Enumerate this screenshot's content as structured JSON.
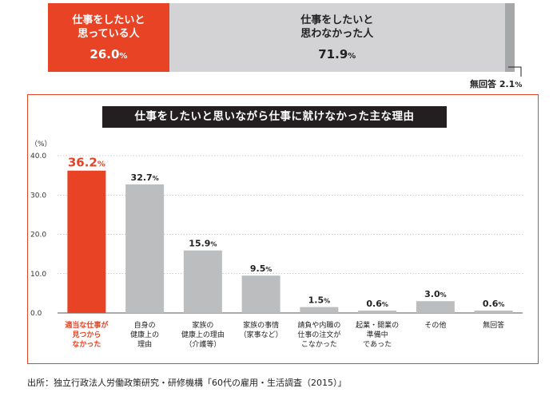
{
  "summary": {
    "segments": [
      {
        "label": "仕事をしたいと\n思っている人",
        "value": 26.0,
        "value_text": "26.0",
        "unit": "%",
        "color": "#e84324"
      },
      {
        "label": "仕事をしたいと\n思わなかった人",
        "value": 71.9,
        "value_text": "71.9",
        "unit": "%",
        "color": "#d3d3d5"
      },
      {
        "label": "無回答",
        "value": 2.1,
        "value_text": "2.1",
        "unit": "%",
        "color": "#a6a7a9"
      }
    ]
  },
  "chart_data": {
    "type": "bar",
    "title": "仕事をしたいと思いながら仕事に就けなかった主な理由",
    "ylabel": "（%）",
    "ylim": [
      0,
      40
    ],
    "yticks": [
      "0.0",
      "10.0",
      "20.0",
      "30.0",
      "40.0"
    ],
    "grid": true,
    "categories": [
      "適当な仕事が\n見つから\nなかった",
      "自身の\n健康上の\n理由",
      "家族の\n健康上の理由\n（介護等）",
      "家族の事情\n（家事など）",
      "請負や内職の\n仕事の注文が\nこなかった",
      "起業・開業の\n準備中\nであった",
      "その他",
      "無回答"
    ],
    "values": [
      36.2,
      32.7,
      15.9,
      9.5,
      1.5,
      0.6,
      3.0,
      0.6
    ],
    "value_labels": [
      "36.2",
      "32.7",
      "15.9",
      "9.5",
      "1.5",
      "0.6",
      "3.0",
      "0.6"
    ],
    "unit": "%",
    "highlight_color": "#e84324",
    "bar_color": "#bcbdbf"
  },
  "source": "出所：独立行政法人労働政策研究・研修機構「60代の雇用・生活調査（2015）」"
}
